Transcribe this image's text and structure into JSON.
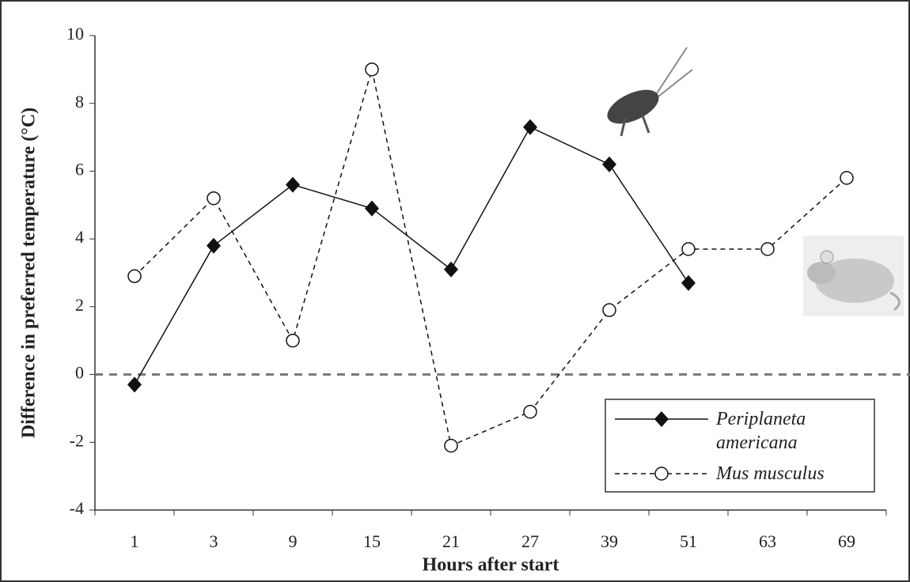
{
  "chart_data": {
    "type": "line",
    "x_label": "Hours after start",
    "y_label": "Difference in preferred temperature (°C)",
    "categories": [
      "1",
      "3",
      "9",
      "15",
      "21",
      "27",
      "39",
      "51",
      "63",
      "69"
    ],
    "series": [
      {
        "name": "Periplaneta americana",
        "color": "#111111",
        "dash": "none",
        "marker": "diamond",
        "values": [
          -0.3,
          3.8,
          5.6,
          4.9,
          3.1,
          7.3,
          6.2,
          2.7,
          null,
          null
        ]
      },
      {
        "name": "Mus musculus",
        "color": "#111111",
        "dash": "6 5",
        "marker": "open-circle",
        "values": [
          2.9,
          5.2,
          1.0,
          9.0,
          -2.1,
          -1.1,
          1.9,
          3.7,
          3.7,
          5.8
        ]
      }
    ],
    "reference_line": 0,
    "ylim": [
      -4,
      10
    ],
    "yticks": [
      -4,
      -2,
      0,
      2,
      4,
      6,
      8,
      10
    ],
    "legend": "lower-right"
  }
}
